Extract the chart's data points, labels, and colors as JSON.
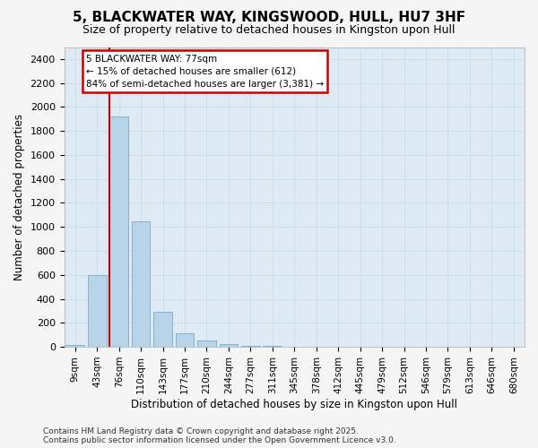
{
  "title": "5, BLACKWATER WAY, KINGSWOOD, HULL, HU7 3HF",
  "subtitle": "Size of property relative to detached houses in Kingston upon Hull",
  "xlabel": "Distribution of detached houses by size in Kingston upon Hull",
  "ylabel": "Number of detached properties",
  "categories": [
    "9sqm",
    "43sqm",
    "76sqm",
    "110sqm",
    "143sqm",
    "177sqm",
    "210sqm",
    "244sqm",
    "277sqm",
    "311sqm",
    "345sqm",
    "378sqm",
    "412sqm",
    "445sqm",
    "479sqm",
    "512sqm",
    "546sqm",
    "579sqm",
    "613sqm",
    "646sqm",
    "680sqm"
  ],
  "values": [
    15,
    600,
    1920,
    1050,
    290,
    115,
    50,
    20,
    10,
    5,
    3,
    2,
    0,
    0,
    0,
    0,
    0,
    0,
    0,
    0,
    0
  ],
  "bar_color": "#b8d4e8",
  "bar_edge_color": "#7aaac8",
  "grid_color": "#c8dcea",
  "background_color": "#deeaf4",
  "vline_color": "#cc0000",
  "vline_index": 2,
  "annotation_line1": "5 BLACKWATER WAY: 77sqm",
  "annotation_line2": "← 15% of detached houses are smaller (612)",
  "annotation_line3": "84% of semi-detached houses are larger (3,381) →",
  "annotation_box_facecolor": "#ffffff",
  "annotation_box_edgecolor": "#cc0000",
  "fig_facecolor": "#f5f5f5",
  "footer": "Contains HM Land Registry data © Crown copyright and database right 2025.\nContains public sector information licensed under the Open Government Licence v3.0.",
  "ylim": [
    0,
    2500
  ],
  "yticks": [
    0,
    200,
    400,
    600,
    800,
    1000,
    1200,
    1400,
    1600,
    1800,
    2000,
    2200,
    2400
  ]
}
